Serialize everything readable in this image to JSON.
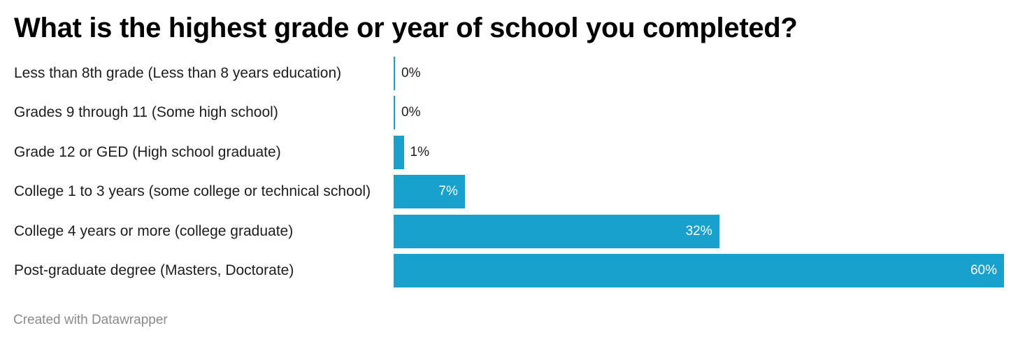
{
  "chart_data": {
    "type": "bar",
    "orientation": "horizontal",
    "title": "What is the highest grade or year of school you completed?",
    "categories": [
      "Less than 8th grade (Less than 8 years education)",
      "Grades 9 through 11 (Some high school)",
      "Grade 12 or GED (High school graduate)",
      "College 1 to 3 years (some college or technical school)",
      "College 4 years or more (college graduate)",
      "Post-graduate degree (Masters, Doctorate)"
    ],
    "values": [
      0,
      0,
      1,
      7,
      32,
      60
    ],
    "value_labels": [
      "0%",
      "0%",
      "1%",
      "7%",
      "32%",
      "60%"
    ],
    "unit": "%",
    "xlim": [
      0,
      60
    ],
    "grid": false,
    "legend": "none",
    "bar_color": "#18a1cd"
  },
  "footer": {
    "credit": "Created with Datawrapper"
  }
}
